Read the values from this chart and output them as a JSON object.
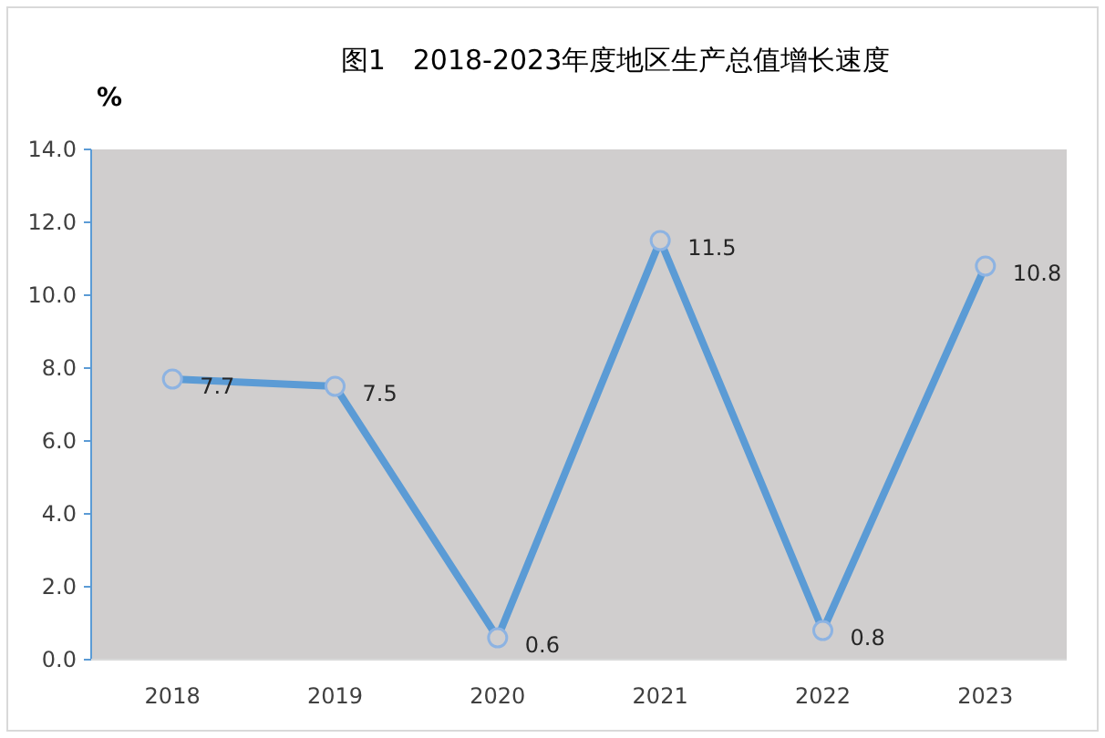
{
  "chart_data": {
    "type": "line",
    "title": "图1　2018-2023年度地区生产总值增长速度",
    "ylabel": "%",
    "categories": [
      "2018",
      "2019",
      "2020",
      "2021",
      "2022",
      "2023"
    ],
    "series": [
      {
        "color": "#5b9bd5",
        "values": [
          7.7,
          7.5,
          0.6,
          11.5,
          0.8,
          10.8
        ]
      }
    ],
    "ylim": [
      0,
      14
    ],
    "yticks": [
      {
        "value": 0,
        "label": "0.0"
      },
      {
        "value": 2,
        "label": "2.0"
      },
      {
        "value": 4,
        "label": "4.0"
      },
      {
        "value": 6,
        "label": "6.0"
      },
      {
        "value": 8,
        "label": "8.0"
      },
      {
        "value": 10,
        "label": "10.0"
      },
      {
        "value": 12,
        "label": "12.0"
      },
      {
        "value": 14,
        "label": "14.0"
      }
    ],
    "data_labels": true,
    "marker": "circle",
    "line_style": "solid",
    "grid": false
  }
}
